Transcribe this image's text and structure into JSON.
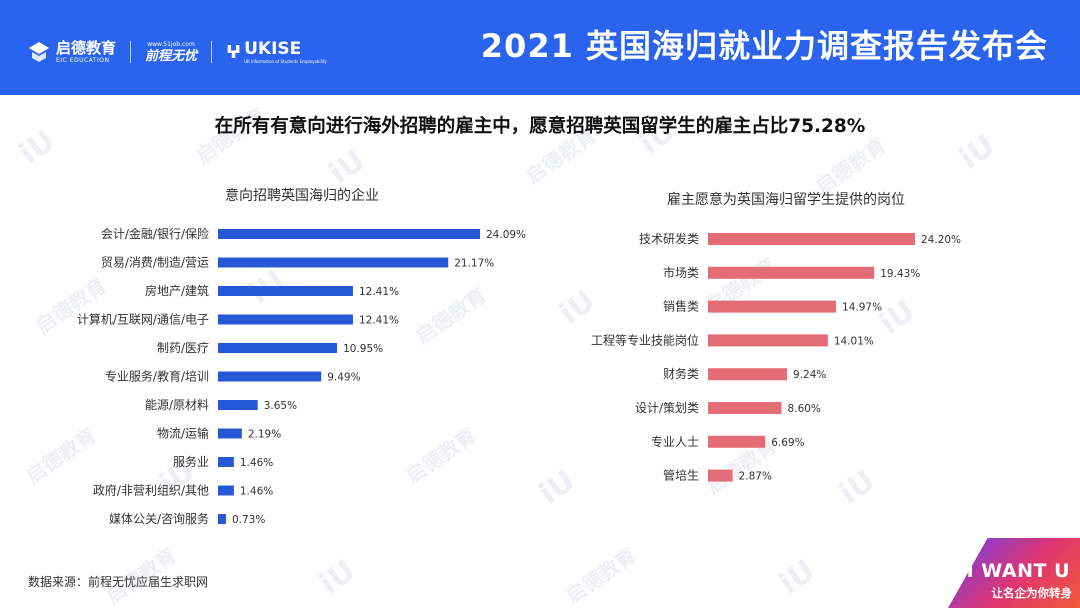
{
  "header": {
    "title": "2021 英国海归就业力调查报告发布会",
    "logo1_cn": "启德教育",
    "logo1_en": "EIC EDUCATION",
    "logo2_url": "www.51job.com",
    "logo2_name": "前程无忧",
    "logo3_name": "UKISE",
    "logo3_sub": "UK Information of Students Employability"
  },
  "headline": "在所有有意向进行海外招聘的雇主中，愿意招聘英国留学生的雇主占比75.28%",
  "chart_data": [
    {
      "type": "bar",
      "orientation": "horizontal",
      "title": "意向招聘英国海归的企业",
      "categories": [
        "会计/金融/银行/保险",
        "贸易/消费/制造/营运",
        "房地产/建筑",
        "计算机/互联网/通信/电子",
        "制药/医疗",
        "专业服务/教育/培训",
        "能源/原材料",
        "物流/运输",
        "服务业",
        "政府/非营利组织/其他",
        "媒体公关/咨询服务"
      ],
      "values": [
        24.09,
        21.17,
        12.41,
        12.41,
        10.95,
        9.49,
        3.65,
        2.19,
        1.46,
        1.46,
        0.73
      ],
      "value_labels": [
        "24.09%",
        "21.17%",
        "12.41%",
        "12.41%",
        "10.95%",
        "9.49%",
        "3.65%",
        "2.19%",
        "1.46%",
        "1.46%",
        "0.73%"
      ],
      "unit": "%",
      "color": "#2557d6",
      "xlim": [
        0,
        24.09
      ],
      "grid": false,
      "legend": "none"
    },
    {
      "type": "bar",
      "orientation": "horizontal",
      "title": "雇主愿意为英国海归留学生提供的岗位",
      "categories": [
        "技术研发类",
        "市场类",
        "销售类",
        "工程等专业技能岗位",
        "财务类",
        "设计/策划类",
        "专业人士",
        "管培生"
      ],
      "values": [
        24.2,
        19.43,
        14.97,
        14.01,
        9.24,
        8.6,
        6.69,
        2.87
      ],
      "value_labels": [
        "24.20%",
        "19.43%",
        "14.97%",
        "14.01%",
        "9.24%",
        "8.60%",
        "6.69%",
        "2.87%"
      ],
      "unit": "%",
      "color": "#e46c74",
      "xlim": [
        0,
        24.2
      ],
      "grid": false,
      "legend": "none"
    }
  ],
  "source": "数据来源：前程无忧应届生求职网",
  "badge": {
    "title": "I WANT U",
    "subtitle": "让名企为你转身"
  },
  "watermark": {
    "mark": "iU",
    "cn": "启德教育",
    "en": "EIC EDUCATION"
  },
  "colors": {
    "header_bg": "#2a64ee",
    "left_bars": "#2557d6",
    "right_bars": "#e46c74"
  }
}
